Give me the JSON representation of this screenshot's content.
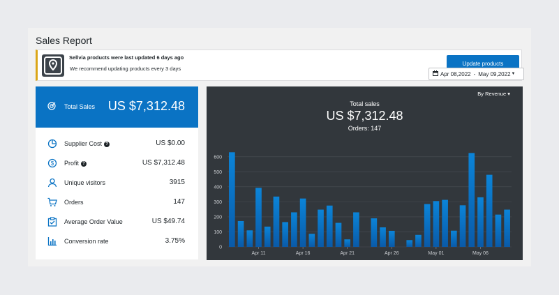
{
  "page": {
    "title": "Sales Report"
  },
  "notice": {
    "title": "Sellvia products were last updated 6 days ago",
    "subtitle": "We recommend updating products every 3 days",
    "button_label": "Update products",
    "logo_icon": "map-pin-icon"
  },
  "date_range": {
    "from": "Apr 08,2022",
    "separator": "-",
    "to": "May 09,2022"
  },
  "summary": {
    "total_label": "Total Sales",
    "total_value": "US $7,312.48",
    "rows": [
      {
        "icon": "pie-chart-icon",
        "label": "Supplier Cost",
        "help": true,
        "value": "US $0.00"
      },
      {
        "icon": "dollar-circle-icon",
        "label": "Profit",
        "help": true,
        "value": "US $7,312.48"
      },
      {
        "icon": "user-icon",
        "label": "Unique visitors",
        "help": false,
        "value": "3915"
      },
      {
        "icon": "cart-icon",
        "label": "Orders",
        "help": false,
        "value": "147"
      },
      {
        "icon": "clipboard-check-icon",
        "label": "Average Order Value",
        "help": false,
        "value": "US $49.74"
      },
      {
        "icon": "bar-chart-icon",
        "label": "Conversion rate",
        "help": false,
        "value": "3.75%"
      }
    ]
  },
  "chart": {
    "sort_label": "By Revenue",
    "title": "Total sales",
    "total": "US $7,312.48",
    "orders": "Orders: 147"
  },
  "colors": {
    "accent": "#0a73c4",
    "chart_bg": "#32373c",
    "notice_border": "#dba617"
  },
  "chart_data": {
    "type": "bar",
    "ylim": [
      0,
      650
    ],
    "yticks": [
      0,
      100,
      200,
      300,
      400,
      500,
      600
    ],
    "x": [
      "Apr 08",
      "Apr 09",
      "Apr 10",
      "Apr 11",
      "Apr 12",
      "Apr 13",
      "Apr 14",
      "Apr 15",
      "Apr 16",
      "Apr 17",
      "Apr 18",
      "Apr 19",
      "Apr 20",
      "Apr 21",
      "Apr 22",
      "Apr 23",
      "Apr 24",
      "Apr 25",
      "Apr 26",
      "Apr 27",
      "Apr 28",
      "Apr 29",
      "Apr 30",
      "May 01",
      "May 02",
      "May 03",
      "May 04",
      "May 05",
      "May 06",
      "May 07",
      "May 08",
      "May 09"
    ],
    "xtick_labels": [
      "Apr 11",
      "Apr 16",
      "Apr 21",
      "Apr 26",
      "May 01",
      "May 06"
    ],
    "values": [
      630,
      172,
      110,
      393,
      135,
      335,
      165,
      230,
      322,
      87,
      248,
      275,
      160,
      50,
      230,
      0,
      190,
      130,
      107,
      0,
      45,
      80,
      285,
      305,
      313,
      108,
      277,
      625,
      330,
      480,
      215,
      248
    ],
    "grid": true,
    "series": [
      {
        "name": "",
        "color": "#0a73c4"
      }
    ]
  }
}
